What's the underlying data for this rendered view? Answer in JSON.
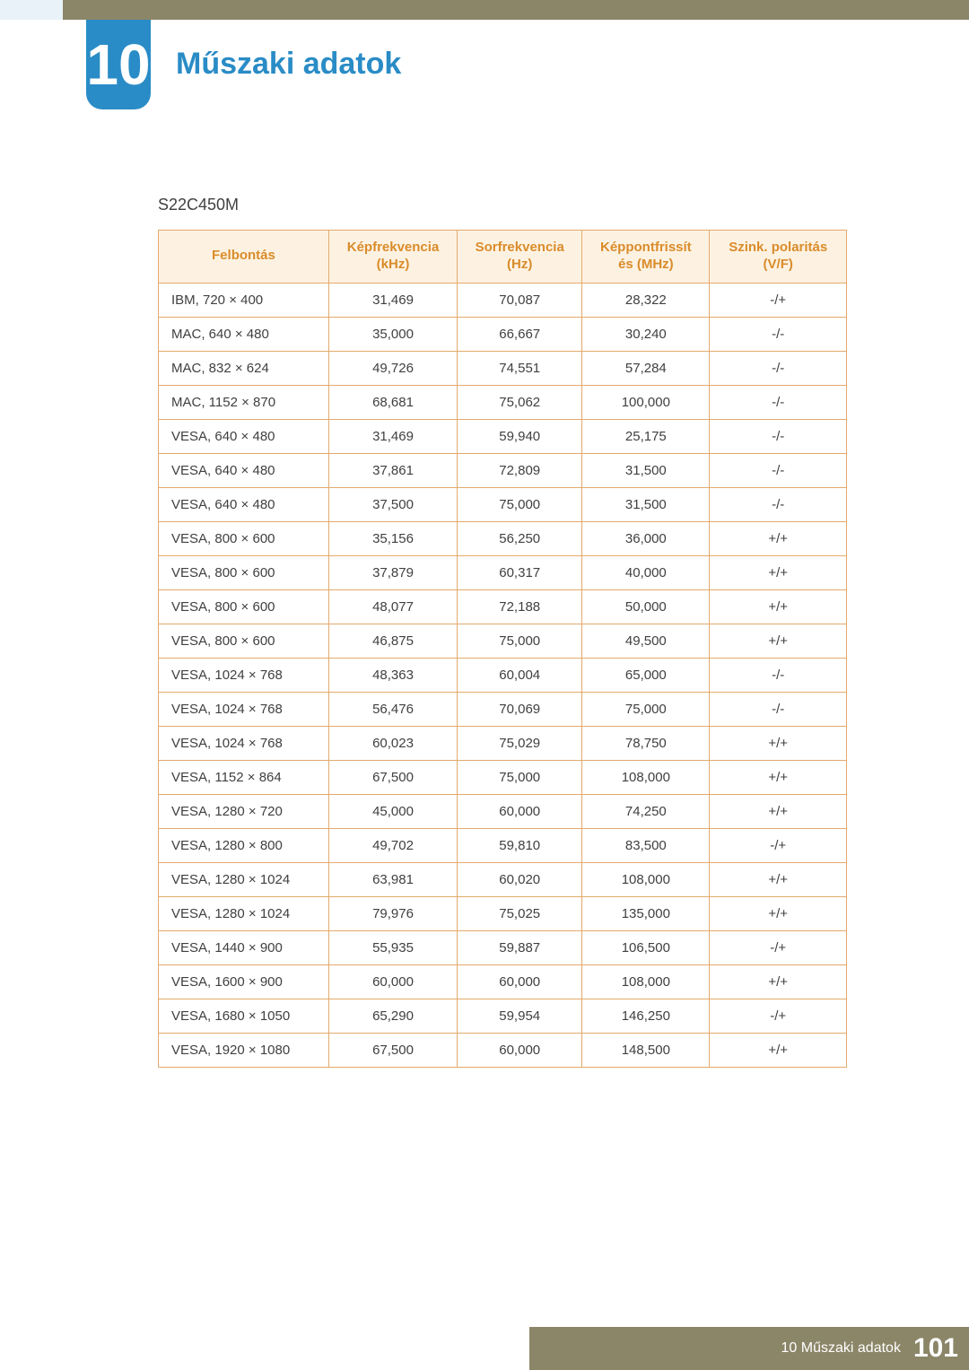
{
  "chapter": {
    "number": "10",
    "title": "Műszaki adatok"
  },
  "model": "S22C450M",
  "table": {
    "type": "table",
    "header_bg": "#fdf2e2",
    "header_text_color": "#d98c2b",
    "border_color": "#e3aa6d",
    "cell_text_color": "#404040",
    "columns": [
      "Felbontás",
      "Képfrekvencia (kHz)",
      "Sorfrekvencia (Hz)",
      "Képpontfrissítés (MHz)",
      "Szink. polaritás (V/F)"
    ],
    "column_headers_multiline": [
      [
        "Felbontás"
      ],
      [
        "Képfrekvencia",
        "(kHz)"
      ],
      [
        "Sorfrekvencia",
        "(Hz)"
      ],
      [
        "Képpontfrissít",
        "és (MHz)"
      ],
      [
        "Szink. polaritás",
        "(V/F)"
      ]
    ],
    "rows": [
      [
        "IBM, 720 × 400",
        "31,469",
        "70,087",
        "28,322",
        "-/+"
      ],
      [
        "MAC, 640 × 480",
        "35,000",
        "66,667",
        "30,240",
        "-/-"
      ],
      [
        "MAC, 832 × 624",
        "49,726",
        "74,551",
        "57,284",
        "-/-"
      ],
      [
        "MAC, 1152 × 870",
        "68,681",
        "75,062",
        "100,000",
        "-/-"
      ],
      [
        "VESA, 640 × 480",
        "31,469",
        "59,940",
        "25,175",
        "-/-"
      ],
      [
        "VESA, 640 × 480",
        "37,861",
        "72,809",
        "31,500",
        "-/-"
      ],
      [
        "VESA, 640 × 480",
        "37,500",
        "75,000",
        "31,500",
        "-/-"
      ],
      [
        "VESA, 800 × 600",
        "35,156",
        "56,250",
        "36,000",
        "+/+"
      ],
      [
        "VESA, 800 × 600",
        "37,879",
        "60,317",
        "40,000",
        "+/+"
      ],
      [
        "VESA, 800 × 600",
        "48,077",
        "72,188",
        "50,000",
        "+/+"
      ],
      [
        "VESA, 800 × 600",
        "46,875",
        "75,000",
        "49,500",
        "+/+"
      ],
      [
        "VESA, 1024 × 768",
        "48,363",
        "60,004",
        "65,000",
        "-/-"
      ],
      [
        "VESA, 1024 × 768",
        "56,476",
        "70,069",
        "75,000",
        "-/-"
      ],
      [
        "VESA, 1024 × 768",
        "60,023",
        "75,029",
        "78,750",
        "+/+"
      ],
      [
        "VESA, 1152 × 864",
        "67,500",
        "75,000",
        "108,000",
        "+/+"
      ],
      [
        "VESA, 1280 × 720",
        "45,000",
        "60,000",
        "74,250",
        "+/+"
      ],
      [
        "VESA, 1280 × 800",
        "49,702",
        "59,810",
        "83,500",
        "-/+"
      ],
      [
        "VESA, 1280 × 1024",
        "63,981",
        "60,020",
        "108,000",
        "+/+"
      ],
      [
        "VESA, 1280 × 1024",
        "79,976",
        "75,025",
        "135,000",
        "+/+"
      ],
      [
        "VESA, 1440 × 900",
        "55,935",
        "59,887",
        "106,500",
        "-/+"
      ],
      [
        "VESA, 1600 × 900",
        "60,000",
        "60,000",
        "108,000",
        "+/+"
      ],
      [
        "VESA, 1680 × 1050",
        "65,290",
        "59,954",
        "146,250",
        "-/+"
      ],
      [
        "VESA, 1920 × 1080",
        "67,500",
        "60,000",
        "148,500",
        "+/+"
      ]
    ]
  },
  "footer": {
    "label": "10 Műszaki adatok",
    "page": "101"
  },
  "colors": {
    "top_bar": "#8b8668",
    "left_stripe": "#e9f2f8",
    "chapter_tab": "#2a8cc6",
    "chapter_title": "#2a8cc6",
    "footer_bg": "#8b8668",
    "footer_text": "#ffffff",
    "page_bg": "#ffffff"
  }
}
